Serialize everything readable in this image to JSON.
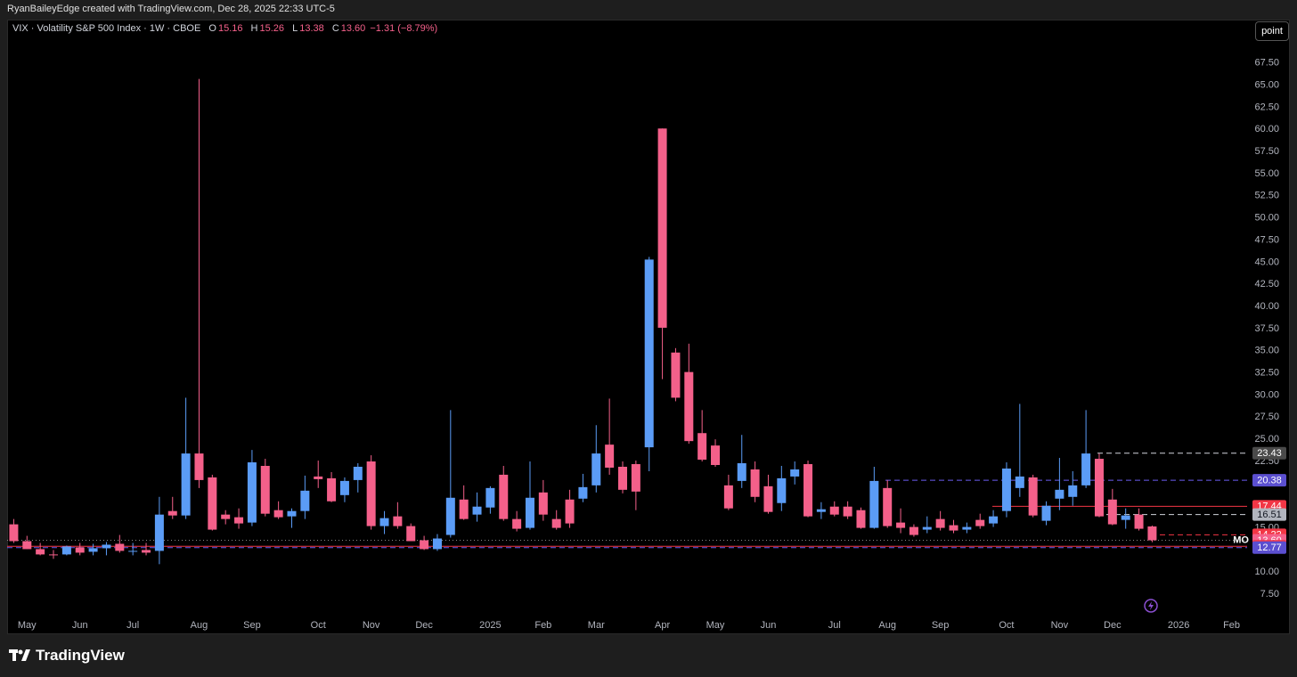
{
  "header": {
    "attribution": "RyanBaileyEdge created with TradingView.com, Dec 28, 2025 22:33 UTC-5"
  },
  "button": {
    "label": "point"
  },
  "footer": {
    "brand": "TradingView"
  },
  "chart_data": {
    "type": "candlestick",
    "symbol": "VIX · Volatility S&P 500 Index · 1W · CBOE",
    "ohlc_legend": [
      {
        "label": "O",
        "value": "15.16"
      },
      {
        "label": "H",
        "value": "15.26"
      },
      {
        "label": "L",
        "value": "13.38"
      },
      {
        "label": "C",
        "value": "13.60"
      }
    ],
    "change": "−1.31 (−8.79%)",
    "up_color": "#5b9cf6",
    "down_color": "#f4608a",
    "grid": false,
    "categories": [
      null,
      "May",
      null,
      null,
      null,
      "Jun",
      null,
      null,
      null,
      "Jul",
      null,
      null,
      null,
      null,
      "Aug",
      null,
      null,
      null,
      "Sep",
      null,
      null,
      null,
      null,
      "Oct",
      null,
      null,
      null,
      "Nov",
      null,
      null,
      null,
      "Dec",
      null,
      null,
      null,
      null,
      "2025",
      null,
      null,
      null,
      "Feb",
      null,
      null,
      null,
      "Mar",
      null,
      null,
      null,
      null,
      "Apr",
      null,
      null,
      null,
      "May",
      null,
      null,
      null,
      "Jun",
      null,
      null,
      null,
      null,
      "Jul",
      null,
      null,
      null,
      "Aug",
      null,
      null,
      null,
      "Sep",
      null,
      null,
      null,
      null,
      "Oct",
      null,
      null,
      null,
      "Nov",
      null,
      null,
      null,
      "Dec",
      null,
      null,
      null,
      null,
      "2026",
      null,
      null,
      null,
      "Feb"
    ],
    "candles": [
      [
        15.4,
        16.0,
        13.3,
        13.5
      ],
      [
        13.5,
        14.1,
        12.6,
        12.6
      ],
      [
        12.6,
        13.3,
        11.9,
        12.0
      ],
      [
        12.0,
        12.5,
        11.5,
        11.9
      ],
      [
        12.0,
        13.0,
        11.9,
        12.9
      ],
      [
        12.8,
        13.3,
        11.9,
        12.2
      ],
      [
        12.3,
        13.2,
        11.9,
        12.7
      ],
      [
        12.7,
        13.4,
        11.9,
        13.1
      ],
      [
        13.2,
        14.2,
        12.2,
        12.4
      ],
      [
        12.4,
        13.3,
        11.9,
        12.4
      ],
      [
        12.5,
        13.3,
        11.9,
        12.2
      ],
      [
        12.4,
        18.5,
        10.9,
        16.5
      ],
      [
        16.9,
        18.5,
        16.0,
        16.4
      ],
      [
        16.4,
        29.7,
        16.0,
        23.4
      ],
      [
        23.4,
        65.7,
        19.5,
        20.4
      ],
      [
        20.7,
        21.0,
        14.7,
        14.8
      ],
      [
        16.5,
        17.0,
        15.4,
        16.0
      ],
      [
        16.2,
        17.2,
        14.9,
        15.5
      ],
      [
        15.6,
        23.8,
        15.2,
        22.4
      ],
      [
        22.0,
        22.8,
        16.3,
        16.6
      ],
      [
        17.0,
        18.0,
        16.0,
        16.2
      ],
      [
        16.3,
        17.2,
        15.0,
        16.9
      ],
      [
        16.9,
        20.9,
        16.0,
        19.2
      ],
      [
        20.8,
        22.6,
        19.5,
        20.5
      ],
      [
        20.6,
        21.3,
        17.9,
        18.0
      ],
      [
        18.7,
        20.7,
        17.9,
        20.3
      ],
      [
        20.4,
        22.3,
        19.0,
        21.9
      ],
      [
        22.5,
        23.2,
        14.8,
        15.2
      ],
      [
        15.2,
        16.9,
        14.3,
        16.1
      ],
      [
        16.3,
        17.9,
        14.9,
        15.2
      ],
      [
        15.2,
        15.5,
        13.5,
        13.5
      ],
      [
        13.6,
        14.1,
        12.5,
        12.6
      ],
      [
        12.6,
        14.3,
        12.4,
        13.8
      ],
      [
        14.2,
        28.3,
        13.9,
        18.4
      ],
      [
        18.2,
        19.8,
        15.9,
        16.0
      ],
      [
        16.5,
        19.0,
        15.7,
        17.4
      ],
      [
        17.3,
        19.7,
        16.6,
        19.5
      ],
      [
        21.0,
        22.0,
        15.8,
        16.0
      ],
      [
        16.0,
        16.9,
        14.6,
        14.9
      ],
      [
        15.0,
        22.5,
        14.8,
        18.4
      ],
      [
        19.0,
        20.4,
        15.8,
        16.5
      ],
      [
        16.0,
        17.0,
        14.8,
        15.0
      ],
      [
        18.2,
        19.3,
        15.0,
        15.5
      ],
      [
        18.3,
        21.1,
        17.9,
        19.6
      ],
      [
        19.8,
        26.6,
        19.0,
        23.4
      ],
      [
        24.4,
        29.6,
        21.0,
        21.8
      ],
      [
        21.9,
        22.5,
        18.9,
        19.3
      ],
      [
        22.2,
        22.6,
        17.0,
        19.1
      ],
      [
        24.1,
        45.6,
        21.4,
        45.3
      ],
      [
        60.1,
        60.1,
        31.8,
        37.6
      ],
      [
        34.8,
        35.3,
        29.3,
        29.7
      ],
      [
        32.6,
        35.8,
        24.5,
        24.8
      ],
      [
        25.7,
        28.3,
        22.5,
        22.7
      ],
      [
        24.3,
        25.0,
        21.9,
        22.1
      ],
      [
        19.8,
        21.0,
        17.0,
        17.2
      ],
      [
        20.3,
        25.5,
        19.5,
        22.3
      ],
      [
        21.6,
        22.5,
        17.9,
        18.5
      ],
      [
        19.7,
        21.0,
        16.6,
        16.8
      ],
      [
        17.8,
        22.0,
        16.9,
        20.6
      ],
      [
        20.8,
        22.5,
        19.9,
        21.6
      ],
      [
        22.2,
        22.6,
        16.2,
        16.3
      ],
      [
        16.8,
        17.9,
        16.0,
        17.1
      ],
      [
        17.4,
        18.0,
        16.3,
        16.5
      ],
      [
        17.4,
        18.0,
        16.0,
        16.3
      ],
      [
        17.0,
        17.3,
        14.9,
        15.0
      ],
      [
        15.0,
        21.9,
        14.9,
        20.3
      ],
      [
        19.5,
        20.4,
        15.0,
        15.2
      ],
      [
        15.6,
        17.2,
        14.4,
        15.0
      ],
      [
        15.1,
        15.4,
        14.0,
        14.2
      ],
      [
        14.8,
        16.3,
        14.4,
        15.1
      ],
      [
        16.0,
        16.9,
        14.7,
        15.0
      ],
      [
        15.3,
        15.9,
        14.4,
        14.7
      ],
      [
        14.8,
        15.6,
        14.4,
        15.1
      ],
      [
        15.9,
        16.6,
        14.9,
        15.2
      ],
      [
        15.5,
        17.0,
        15.1,
        16.3
      ],
      [
        16.9,
        22.4,
        16.2,
        21.7
      ],
      [
        19.5,
        29.0,
        18.5,
        20.8
      ],
      [
        20.7,
        21.0,
        16.2,
        16.4
      ],
      [
        15.8,
        18.0,
        15.3,
        17.5
      ],
      [
        18.3,
        22.9,
        17.0,
        19.3
      ],
      [
        18.5,
        21.4,
        17.5,
        19.8
      ],
      [
        19.8,
        28.3,
        19.5,
        23.4
      ],
      [
        22.8,
        23.4,
        16.2,
        16.3
      ],
      [
        18.2,
        19.4,
        15.3,
        15.4
      ],
      [
        15.9,
        17.2,
        14.9,
        16.4
      ],
      [
        16.5,
        17.2,
        14.7,
        14.9
      ],
      [
        15.16,
        15.26,
        13.38,
        13.6
      ],
      null,
      null,
      null,
      null,
      null,
      null
    ],
    "ylim": [
      5.2,
      72.4
    ],
    "yticks": [
      {
        "value": 7.5,
        "label": "7.50"
      },
      {
        "value": 10,
        "label": "10.00"
      },
      {
        "value": 12.5,
        "label": "12.50"
      },
      {
        "value": 15,
        "label": "15.00"
      },
      {
        "value": 17.5,
        "label": "17.50"
      },
      {
        "value": 20,
        "label": "20.00"
      },
      {
        "value": 22.5,
        "label": "22.50"
      },
      {
        "value": 25,
        "label": "25.00"
      },
      {
        "value": 27.5,
        "label": "27.50"
      },
      {
        "value": 30,
        "label": "30.00"
      },
      {
        "value": 32.5,
        "label": "32.50"
      },
      {
        "value": 35,
        "label": "35.00"
      },
      {
        "value": 37.5,
        "label": "37.50"
      },
      {
        "value": 40,
        "label": "40.00"
      },
      {
        "value": 42.5,
        "label": "42.50"
      },
      {
        "value": 45,
        "label": "45.00"
      },
      {
        "value": 47.5,
        "label": "47.50"
      },
      {
        "value": 50,
        "label": "50.00"
      },
      {
        "value": 52.5,
        "label": "52.50"
      },
      {
        "value": 55,
        "label": "55.00"
      },
      {
        "value": 57.5,
        "label": "57.50"
      },
      {
        "value": 60,
        "label": "60.00"
      },
      {
        "value": 62.5,
        "label": "62.50"
      },
      {
        "value": 65,
        "label": "65.00"
      },
      {
        "value": 67.5,
        "label": "67.50"
      }
    ],
    "levels": [
      {
        "value": 23.43,
        "label": "23.43",
        "color": "#d1d4dc",
        "style": "dashed",
        "label_bg": "#4a4a4a",
        "label_fg": "#ffffff"
      },
      {
        "value": 20.38,
        "label": "20.38",
        "color": "#6a5cf0",
        "style": "dashed",
        "label_bg": "#5b4fd0",
        "label_fg": "#ffffff"
      },
      {
        "value": 17.44,
        "label": "17.44",
        "color": "#f23645",
        "style": "solid",
        "label_bg": "#f23645",
        "label_fg": "#ffffff"
      },
      {
        "value": 16.51,
        "label": "16.51",
        "color": "#d1d4dc",
        "style": "dashed",
        "label_bg": "#b2b5be",
        "label_fg": "#131722"
      },
      {
        "value": 14.22,
        "label": "14.22",
        "color": "#f23645",
        "style": "dashed",
        "label_bg": "#f23645",
        "label_fg": "#ffffff"
      },
      {
        "value": 13.6,
        "label": "13.60",
        "color": "#888888",
        "style": "dotted",
        "label_bg": "#f4608a",
        "label_fg": "#ffffff",
        "tag": "MO"
      },
      {
        "value": 12.92,
        "label": "12.92",
        "color": "#f23645",
        "style": "solid",
        "label_bg": "#f23645",
        "label_fg": "#ffffff"
      },
      {
        "value": 12.77,
        "label": "12.77",
        "color": "#6a5cf0",
        "style": "dashed",
        "label_bg": "#5b4fd0",
        "label_fg": "#ffffff"
      }
    ]
  }
}
